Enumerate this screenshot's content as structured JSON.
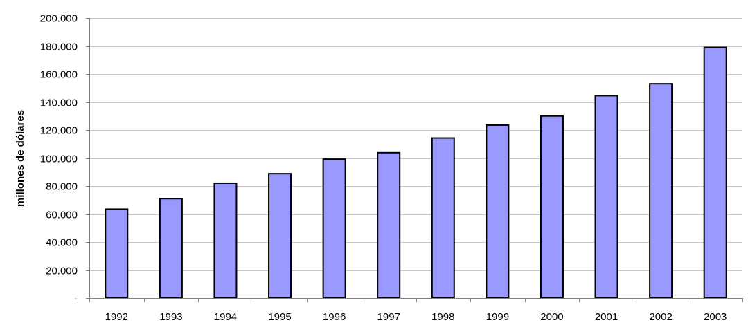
{
  "chart_data": {
    "type": "bar",
    "title": "",
    "xlabel": "",
    "ylabel": "millones de dólares",
    "categories": [
      "1992",
      "1993",
      "1994",
      "1995",
      "1996",
      "1997",
      "1998",
      "1999",
      "2000",
      "2001",
      "2002",
      "2003"
    ],
    "values": [
      63500,
      71000,
      82000,
      88800,
      99200,
      103800,
      114300,
      123500,
      130000,
      144500,
      153000,
      179000
    ],
    "ylim": [
      0,
      200000
    ],
    "yticks": [
      0,
      20000,
      40000,
      60000,
      80000,
      100000,
      120000,
      140000,
      160000,
      180000,
      200000
    ],
    "ytick_labels": [
      "-",
      "20.000",
      "40.000",
      "60.000",
      "80.000",
      "100.000",
      "120.000",
      "140.000",
      "160.000",
      "180.000",
      "200.000"
    ],
    "grid": true,
    "legend": "none",
    "colors": {
      "bar_fill": "#9999ff",
      "bar_stroke": "#000000",
      "grid": "#c8c8c8"
    }
  }
}
